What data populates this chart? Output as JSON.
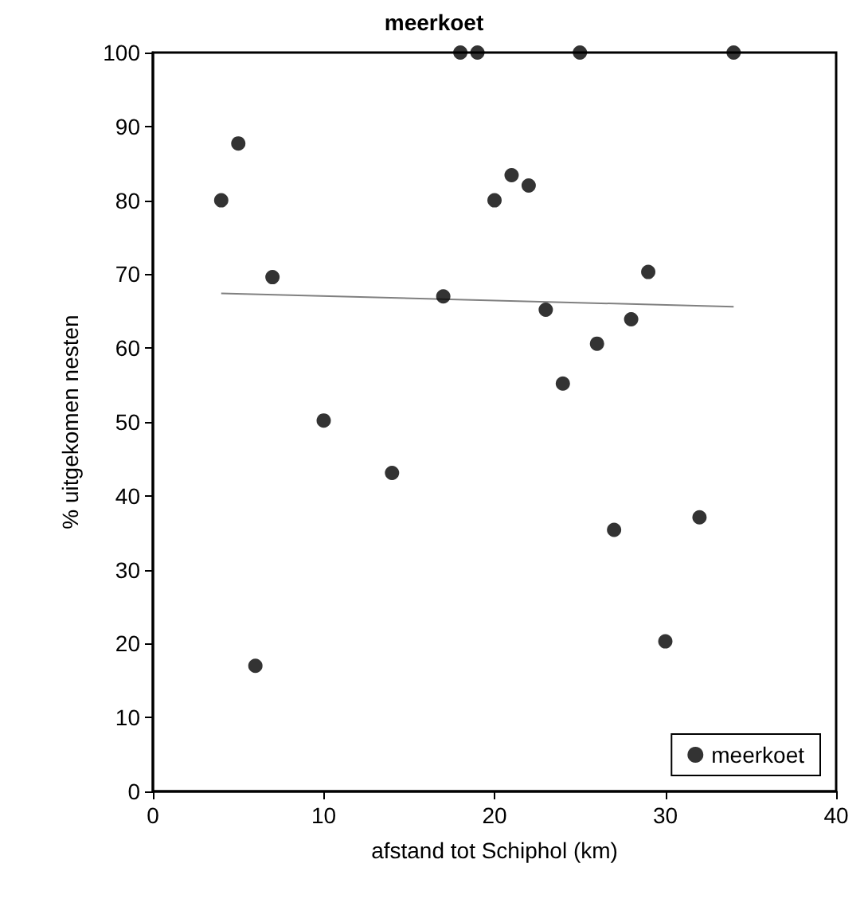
{
  "chart_data": {
    "type": "scatter",
    "title": "meerkoet",
    "xlabel": "afstand tot Schiphol (km)",
    "ylabel": "% uitgekomen nesten",
    "xlim": [
      0,
      40
    ],
    "xticks": [
      0,
      10,
      20,
      30,
      40
    ],
    "ylim": [
      0,
      100
    ],
    "yticks": [
      0,
      10,
      20,
      30,
      40,
      50,
      60,
      70,
      80,
      90,
      100
    ],
    "grid": false,
    "legend": "bottom right",
    "marker": "circle",
    "series": [
      {
        "name": "meerkoet",
        "color": "#000000",
        "x": [
          4,
          5,
          6,
          7,
          10,
          14,
          17,
          18,
          19,
          20,
          21,
          22,
          23,
          24,
          25,
          26,
          27,
          28,
          29,
          30,
          32,
          34
        ],
        "values": [
          80,
          87.7,
          17,
          69.6,
          50.2,
          43.1,
          67,
          100,
          100,
          80,
          83.4,
          82,
          65.2,
          55.2,
          100,
          60.6,
          35.4,
          63.9,
          70.3,
          20.3,
          37.1,
          100
        ]
      },
      {
        "type": "line",
        "color": "#808080",
        "marker": "none",
        "x": [
          4,
          34
        ],
        "values": [
          67.4,
          65.6
        ]
      }
    ]
  }
}
